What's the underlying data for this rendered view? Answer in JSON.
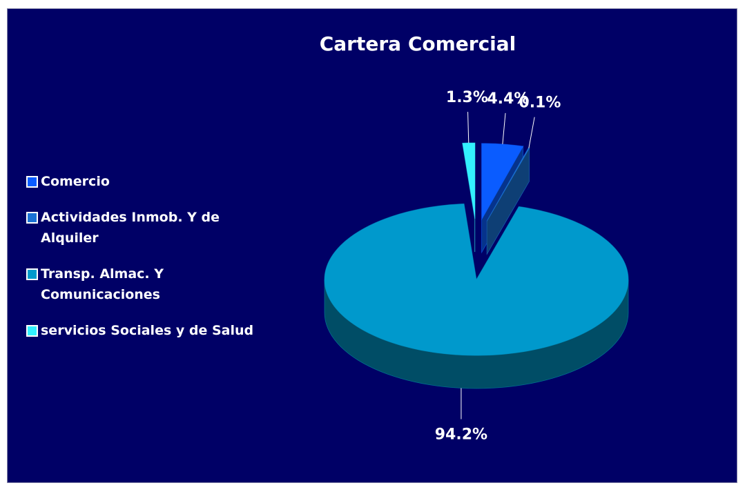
{
  "chart_data": {
    "type": "pie",
    "title": "Cartera Comercial",
    "categories": [
      "Comercio",
      "Actividades Inmob. Y de Alquiler",
      "Transp. Almac. Y Comunicaciones",
      "servicios Sociales y de Salud"
    ],
    "values": [
      4.4,
      0.1,
      94.2,
      1.3
    ],
    "value_labels": [
      "4.4%",
      "0.1%",
      "94.2%",
      "1.3%"
    ],
    "colors": [
      "#0a5cff",
      "#1a72d4",
      "#0099cc",
      "#33f0ff"
    ],
    "legend": "left"
  }
}
